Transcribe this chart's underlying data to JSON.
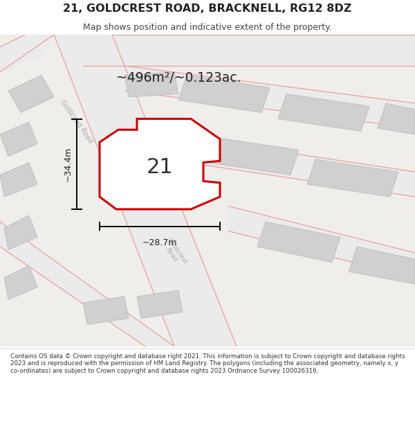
{
  "title": "21, GOLDCREST ROAD, BRACKNELL, RG12 8DZ",
  "subtitle": "Map shows position and indicative extent of the property.",
  "area_label": "~496m²/~0.123ac.",
  "plot_number": "21",
  "width_label": "~28.7m",
  "height_label": "~34.4m",
  "footer": "Contains OS data © Crown copyright and database right 2021. This information is subject to Crown copyright and database rights 2023 and is reproduced with the permission of HM Land Registry. The polygons (including the associated geometry, namely x, y co-ordinates) are subject to Crown copyright and database rights 2023 Ordnance Survey 100026316.",
  "bg_color": "#ffffff",
  "map_bg": "#f0eeeb",
  "road_line_color": "#e8a0a0",
  "road_fill_color": "#ebebeb",
  "building_fill": "#d0d0d0",
  "building_edge": "#bbbbbb",
  "plot_fill": "#ffffff",
  "plot_edge": "#cc0000",
  "road_label_color": "#aaaaaa",
  "dim_color": "#000000",
  "text_color": "#222222"
}
